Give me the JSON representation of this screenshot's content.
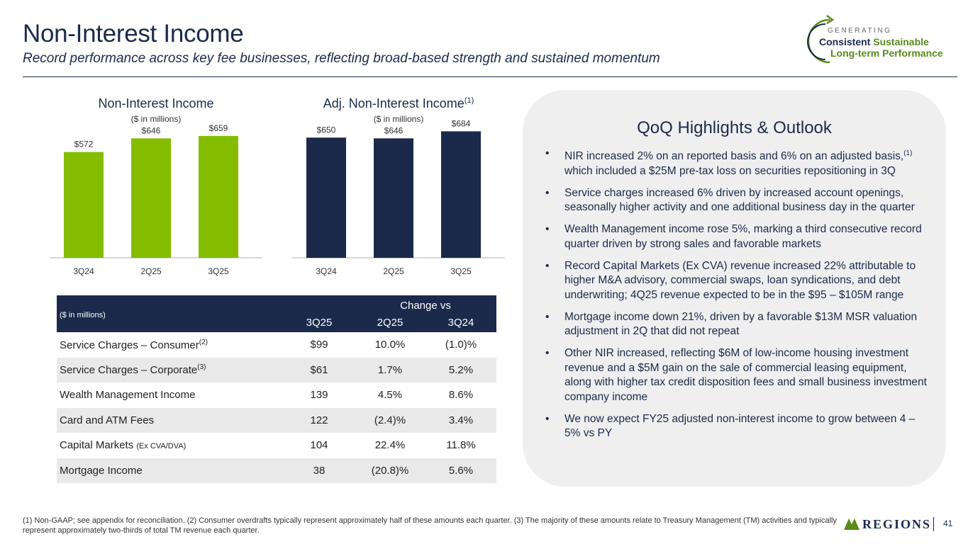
{
  "header": {
    "title": "Non-Interest Income",
    "subtitle": "Record performance across key fee businesses, reflecting broad-based strength and sustained momentum"
  },
  "brand": {
    "generating": "GENERATING",
    "consistent": "Consistent",
    "sustainable": "Sustainable",
    "longterm": "Long-term Performance"
  },
  "chart_data": [
    {
      "type": "bar",
      "title": "Non-Interest Income",
      "subtitle": "($ in millions)",
      "categories": [
        "3Q24",
        "2Q25",
        "3Q25"
      ],
      "values": [
        572,
        646,
        659
      ],
      "data_labels": [
        "$572",
        "$646",
        "$659"
      ],
      "color": "#84bd00",
      "ylim": [
        0,
        720
      ]
    },
    {
      "type": "bar",
      "title": "Adj. Non-Interest Income",
      "title_sup": "(1)",
      "subtitle": "($ in millions)",
      "categories": [
        "3Q24",
        "2Q25",
        "3Q25"
      ],
      "values": [
        650,
        646,
        684
      ],
      "data_labels": [
        "$650",
        "$646",
        "$684"
      ],
      "color": "#1b2a4a",
      "ylim": [
        0,
        720
      ]
    }
  ],
  "table": {
    "units": "($ in millions)",
    "change_vs": "Change vs",
    "columns": [
      "3Q25",
      "2Q25",
      "3Q24"
    ],
    "rows": [
      {
        "label": "Service Charges – Consumer",
        "sup": "(2)",
        "small": "",
        "v": "$99",
        "c1": "10.0%",
        "c2": "(1.0)%"
      },
      {
        "label": "Service Charges – Corporate",
        "sup": "(3)",
        "small": "",
        "v": "$61",
        "c1": "1.7%",
        "c2": "5.2%"
      },
      {
        "label": "Wealth Management Income",
        "sup": "",
        "small": "",
        "v": "139",
        "c1": "4.5%",
        "c2": "8.6%"
      },
      {
        "label": "Card and ATM Fees",
        "sup": "",
        "small": "",
        "v": "122",
        "c1": "(2.4)%",
        "c2": "3.4%"
      },
      {
        "label": "Capital Markets",
        "sup": "",
        "small": "(Ex CVA/DVA)",
        "v": "104",
        "c1": "22.4%",
        "c2": "11.8%"
      },
      {
        "label": "Mortgage Income",
        "sup": "",
        "small": "",
        "v": "38",
        "c1": "(20.8)%",
        "c2": "5.6%"
      }
    ]
  },
  "highlights": {
    "title": "QoQ Highlights & Outlook",
    "bullet": "•",
    "items": [
      {
        "text": "NIR increased 2% on an reported basis and 6% on an adjusted basis,",
        "sup": "(1)",
        "rest": " which included a $25M pre-tax loss on securities repositioning in 3Q"
      },
      {
        "text": "Service charges increased 6% driven by increased account openings, seasonally higher activity and one additional business day in the quarter",
        "sup": "",
        "rest": ""
      },
      {
        "text": "Wealth Management income rose 5%, marking a third consecutive record quarter driven by strong sales and favorable markets",
        "sup": "",
        "rest": ""
      },
      {
        "text": "Record Capital Markets (Ex CVA) revenue increased 22% attributable to higher M&A advisory, commercial swaps, loan syndications, and debt underwriting; 4Q25 revenue expected to be in the $95 –  $105M range",
        "sup": "",
        "rest": ""
      },
      {
        "text": "Mortgage income down 21%, driven by a favorable $13M MSR valuation adjustment in 2Q that did not repeat",
        "sup": "",
        "rest": ""
      },
      {
        "text": "Other NIR increased, reflecting $6M of low-income housing investment revenue and a $5M gain on the sale of commercial leasing equipment, along with higher tax credit disposition fees and small business investment company income",
        "sup": "",
        "rest": ""
      },
      {
        "text": "We now expect FY25 adjusted non-interest income to grow between 4 – 5% vs PY",
        "sup": "",
        "rest": ""
      }
    ]
  },
  "footer": {
    "footnote": "(1)  Non-GAAP; see appendix for reconciliation. (2) Consumer overdrafts typically represent approximately half of these amounts each quarter. (3) The majority of these amounts relate to Treasury Management (TM) activities and typically represent approximately two-thirds of total TM revenue each quarter.",
    "logo": "REGIONS",
    "page": "41"
  }
}
